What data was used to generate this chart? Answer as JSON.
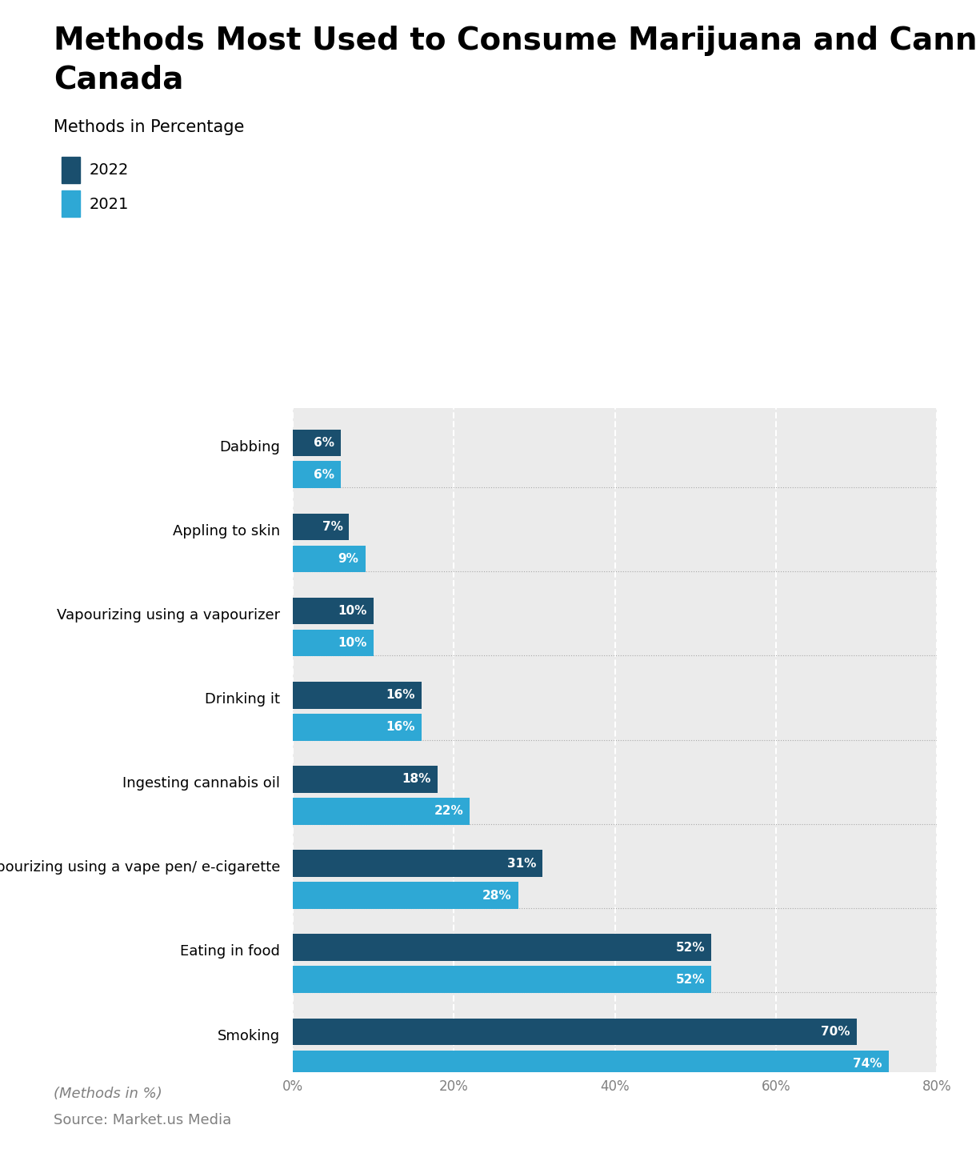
{
  "title_line1": "Methods Most Used to Consume Marijuana and Cannabis in",
  "title_line2": "Canada",
  "subtitle": "Methods in Percentage",
  "categories": [
    "Smoking",
    "Eating in food",
    "Vapourizing using a vape pen/ e-cigarette",
    "Ingesting cannabis oil",
    "Drinking it",
    "Vapourizing using a vapourizer",
    "Appling to skin",
    "Dabbing"
  ],
  "values_2022": [
    70,
    52,
    31,
    18,
    16,
    10,
    7,
    6
  ],
  "values_2021": [
    74,
    52,
    28,
    22,
    16,
    10,
    9,
    6
  ],
  "color_2022": "#1a4f6e",
  "color_2021": "#2ea8d5",
  "xlim": [
    0,
    80
  ],
  "xticks": [
    0,
    20,
    40,
    60,
    80
  ],
  "xlabel_footnote": "(Methods in %)",
  "source": "Source: Market.us Media",
  "legend_2022": "2022",
  "legend_2021": "2021",
  "background_color": "#ebebeb",
  "title_fontsize": 28,
  "subtitle_fontsize": 15,
  "label_fontsize": 13,
  "bar_label_fontsize": 11,
  "tick_fontsize": 12
}
